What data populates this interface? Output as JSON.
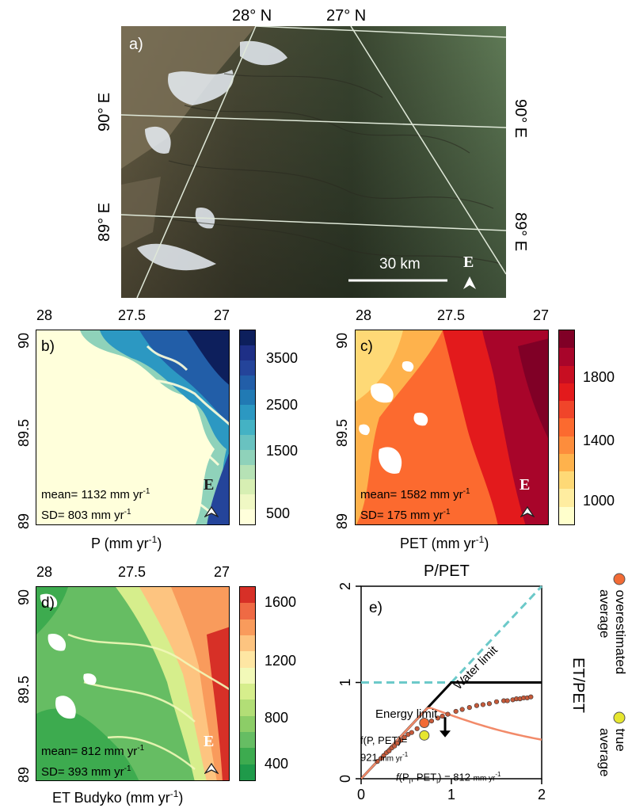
{
  "panel_a": {
    "label": "a)",
    "top_lat": [
      "28° N",
      "27° N"
    ],
    "left_lon": [
      "90° E",
      "89° E"
    ],
    "right_lon": [
      "90° E",
      "89° E"
    ],
    "scale_label": "30 km",
    "north_letter": "E"
  },
  "map_axes": {
    "top_ticks": [
      "28",
      "27.5",
      "27"
    ],
    "left_ticks": [
      "90",
      "89.5",
      "89"
    ]
  },
  "panel_b": {
    "label": "b)",
    "mean": "mean= 1132 mm yr",
    "sd": "SD= 803 mm yr",
    "sup": "-1",
    "xlabel": "P (mm yr",
    "xlabel_sup": "-1",
    "xlabel_end": ")",
    "cbar_ticks": [
      "3500",
      "2500",
      "1500",
      "500"
    ],
    "cbar_colors": [
      "#ffffdb",
      "#f0f8c4",
      "#d7efb3",
      "#b6e2b5",
      "#8fd2ba",
      "#69c2c0",
      "#44b2c4",
      "#2c98c2",
      "#217ab4",
      "#225ea8",
      "#24449a",
      "#1e2f86",
      "#0d1f5c"
    ],
    "north_letter": "E"
  },
  "panel_c": {
    "label": "c)",
    "mean": "mean= 1582 mm yr",
    "sd": "SD= 175 mm yr",
    "sup": "-1",
    "xlabel": "PET (mm yr",
    "xlabel_sup": "-1",
    "xlabel_end": ")",
    "cbar_ticks": [
      "1800",
      "1400",
      "1000"
    ],
    "cbar_colors": [
      "#ffffcc",
      "#ffeda0",
      "#fed976",
      "#feb24c",
      "#fd8d3c",
      "#fc6a2f",
      "#f0452a",
      "#e31a1c",
      "#c80e22",
      "#a8052a",
      "#800026"
    ],
    "north_letter": "E"
  },
  "panel_d": {
    "label": "d)",
    "mean": "mean= 812 mm yr",
    "sd": "SD= 393 mm yr",
    "sup": "-1",
    "xlabel": "ET Budyko (mm yr",
    "xlabel_sup": "-1",
    "xlabel_end": ")",
    "cbar_ticks": [
      "1600",
      "1200",
      "800",
      "400"
    ],
    "cbar_colors": [
      "#1f9a4a",
      "#3dab4f",
      "#66bd63",
      "#8ccd67",
      "#b2de76",
      "#d6ee8c",
      "#f2f9b8",
      "#fee6a3",
      "#fdc480",
      "#f99b5c",
      "#ef6a44",
      "#d73027"
    ],
    "north_letter": "E"
  },
  "panel_e": {
    "label": "e)",
    "title": "P/PET",
    "ylabel": "ET/PET",
    "energy_limit": "Energy limit",
    "water_limit": "Water limit",
    "annot_top": "f(P, PET)=",
    "annot_top_value": "921",
    "annot_top_unit": "mm yr",
    "annot_bottom": "(P",
    "annot_bottom_i": "i",
    "annot_bottom_mid": ", PET",
    "annot_bottom_end": ") = 812",
    "annot_bottom_unit": "mm yr",
    "f_letter": "f",
    "sup": "-1",
    "legend_over_1": "overestimated",
    "legend_over_2": "average",
    "legend_true_1": "true",
    "legend_true_2": "average",
    "colors": {
      "overestimated": "#f26b35",
      "true": "#e6e62f",
      "curve": "#f28a69",
      "limits": "#6cc9c9",
      "points": "#c65a3a"
    }
  },
  "chart_data": {
    "type": "line",
    "title": "P/PET",
    "xlabel": "",
    "ylabel": "ET/PET",
    "xlim": [
      0,
      2
    ],
    "ylim": [
      0,
      2
    ],
    "x_ticks": [
      "0",
      "1",
      "2"
    ],
    "y_ticks": [
      "0",
      "1",
      "2"
    ],
    "series": [
      {
        "name": "Energy limit",
        "x": [
          0,
          2
        ],
        "y": [
          1,
          1
        ]
      },
      {
        "name": "Water limit",
        "x": [
          0,
          2
        ],
        "y": [
          0,
          2
        ]
      }
    ],
    "points": {
      "x": [
        0.18,
        0.22,
        0.25,
        0.28,
        0.31,
        0.34,
        0.37,
        0.4,
        0.44,
        0.48,
        0.52,
        0.56,
        0.62,
        0.7,
        0.78,
        0.85,
        0.9,
        0.96,
        1.05,
        1.12,
        1.2,
        1.28,
        1.35,
        1.42,
        1.5,
        1.58,
        1.62,
        1.68,
        1.72,
        1.76,
        1.8,
        1.84,
        1.88
      ],
      "y": [
        0.18,
        0.21,
        0.24,
        0.27,
        0.29,
        0.32,
        0.34,
        0.37,
        0.4,
        0.43,
        0.46,
        0.48,
        0.52,
        0.56,
        0.6,
        0.63,
        0.65,
        0.67,
        0.7,
        0.72,
        0.74,
        0.76,
        0.77,
        0.78,
        0.8,
        0.81,
        0.81,
        0.82,
        0.83,
        0.83,
        0.84,
        0.84,
        0.85
      ]
    },
    "overestimated": {
      "x": 0.7,
      "y": 0.58
    },
    "true_average": {
      "x": 0.7,
      "y": 0.45
    }
  }
}
